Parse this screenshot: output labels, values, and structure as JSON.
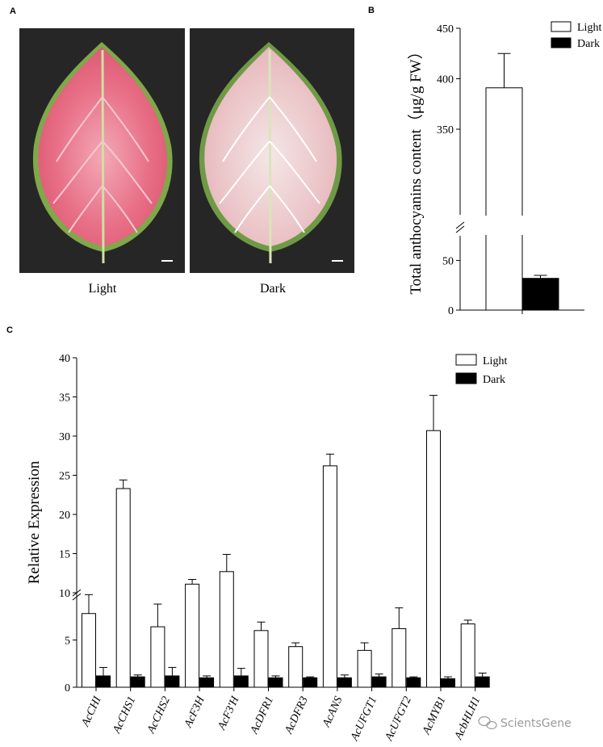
{
  "panels": {
    "a": {
      "letter": "A",
      "light_label": "Light",
      "dark_label": "Dark"
    },
    "b": {
      "letter": "B"
    },
    "c": {
      "letter": "C"
    }
  },
  "watermark": "ScientsGene",
  "colors": {
    "light_bar": "#ffffff",
    "dark_bar": "#000000"
  },
  "chart_data": [
    {
      "type": "bar",
      "panel": "B",
      "ylabel": "Total anthocyanins content（μg/g FW）",
      "xlabel": "",
      "categories": [
        ""
      ],
      "series": [
        {
          "name": "Light",
          "values": [
            391
          ],
          "error": [
            34
          ]
        },
        {
          "name": "Dark",
          "values": [
            32
          ],
          "error": [
            3
          ]
        }
      ],
      "y_axis_break": [
        70,
        270
      ],
      "yticks_lower": [
        0,
        50
      ],
      "yticks_upper": [
        350,
        400,
        450
      ],
      "ylim": [
        0,
        450
      ],
      "legend": "top-right",
      "grid": false
    },
    {
      "type": "bar",
      "panel": "C",
      "ylabel": "Relative Expression",
      "xlabel": "",
      "categories": [
        "AcCHI",
        "AcCHS1",
        "AcCHS2",
        "AcF3H",
        "AcF3'H",
        "AcDFR1",
        "AcDFR3",
        "AcANS",
        "AcUFGT1",
        "AcUFGT2",
        "AcMYB1",
        "AcbHLH1"
      ],
      "series": [
        {
          "name": "Light",
          "values": [
            7.8,
            23.3,
            6.4,
            11.1,
            12.7,
            6.0,
            4.3,
            26.2,
            3.9,
            6.2,
            30.7,
            6.7
          ],
          "error": [
            2.0,
            1.1,
            2.4,
            0.6,
            2.2,
            0.9,
            0.4,
            1.5,
            0.8,
            2.2,
            4.5,
            0.4
          ]
        },
        {
          "name": "Dark",
          "values": [
            1.2,
            1.1,
            1.2,
            1.0,
            1.2,
            1.0,
            1.0,
            1.0,
            1.1,
            1.0,
            0.9,
            1.1
          ],
          "error": [
            0.9,
            0.2,
            0.9,
            0.2,
            0.8,
            0.2,
            0.1,
            0.3,
            0.3,
            0.1,
            0.2,
            0.4
          ]
        }
      ],
      "y_axis_break": [
        10,
        10
      ],
      "yticks_lower": [
        0,
        5,
        10
      ],
      "yticks_upper": [
        15,
        20,
        25,
        30,
        35,
        40
      ],
      "ylim": [
        0,
        40
      ],
      "legend": "top-right",
      "grid": false
    }
  ]
}
